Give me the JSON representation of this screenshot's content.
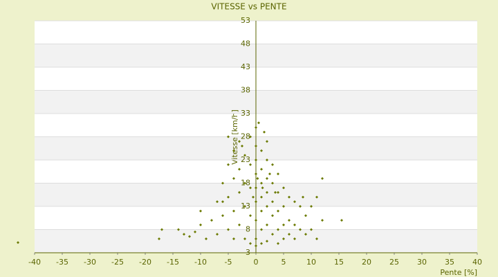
{
  "chart_data": {
    "type": "scatter",
    "title": "VITESSE vs PENTE",
    "xlabel": "Pente [%]",
    "ylabel": "Vitesse [km/h]",
    "color": "#6b7a00",
    "x": [
      -43,
      -17.5,
      -17,
      -14,
      -13,
      -12,
      -11,
      -10,
      -10,
      -9,
      -8,
      -7,
      -7,
      -6,
      -6,
      -5,
      -5,
      -5,
      -5,
      -4,
      -4,
      -4,
      -4,
      -3,
      -3,
      -3,
      -3,
      -2,
      -2,
      -2,
      -2,
      -1,
      -1,
      -1,
      -1,
      -1,
      0,
      0,
      0,
      0,
      0,
      0,
      0,
      0,
      0,
      0.5,
      1,
      1,
      1,
      1,
      1,
      1,
      1,
      2,
      2,
      2,
      2,
      2,
      2,
      2,
      3,
      3,
      3,
      3,
      3,
      4,
      4,
      4,
      4,
      4,
      5,
      5,
      5,
      5,
      6,
      6,
      6,
      7,
      7,
      7,
      8,
      8,
      9,
      9,
      10,
      10,
      11,
      11,
      12,
      12,
      15.5,
      8.5,
      -2.5,
      1.5,
      -6,
      3.5,
      0.3,
      -0.5,
      2.5,
      1.2
    ],
    "values": [
      5.2,
      6,
      8,
      8,
      7,
      6.5,
      7.5,
      9,
      12,
      6,
      10,
      14,
      7,
      18,
      11,
      22,
      15,
      8,
      28,
      25,
      19,
      12,
      6,
      27,
      21,
      16,
      9,
      24,
      18,
      13,
      6,
      28,
      22,
      17,
      11,
      5,
      30,
      26,
      23,
      20,
      17,
      14,
      10,
      6,
      4.5,
      31,
      25,
      21,
      18,
      15,
      12,
      8,
      5,
      27,
      23,
      19,
      16,
      13,
      9,
      5.5,
      22,
      18,
      14,
      11,
      7,
      20,
      16,
      12,
      8,
      5,
      17,
      13,
      9,
      6,
      15,
      10,
      7,
      14,
      9,
      6,
      13,
      8,
      11,
      7,
      13,
      8,
      15,
      6,
      19,
      10,
      10,
      15,
      26,
      29,
      14,
      16,
      19,
      15,
      20,
      17
    ],
    "xlim": [
      -40,
      40
    ],
    "xticks": [
      -40,
      -35,
      -30,
      -25,
      -20,
      -15,
      -10,
      -5,
      0,
      5,
      10,
      15,
      20,
      25,
      30,
      35,
      40
    ],
    "ylim": [
      3,
      53
    ],
    "yticks": [
      3,
      8,
      13,
      18,
      23,
      28,
      33,
      38,
      43,
      48,
      53
    ],
    "grid": true
  }
}
